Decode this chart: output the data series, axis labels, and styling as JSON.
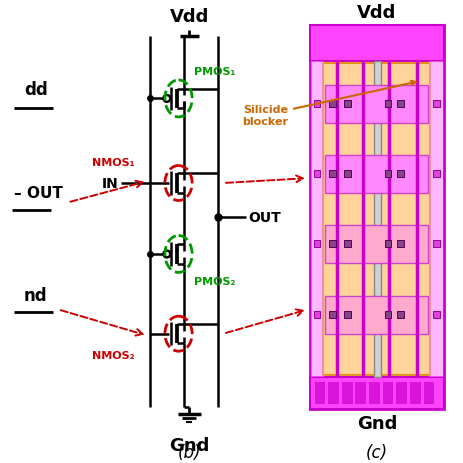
{
  "bg_color": "#ffffff",
  "title_b": "(b)",
  "title_c": "(c)",
  "vdd_b": "Vdd",
  "gnd_b": "Gnd",
  "vdd_c": "Vdd",
  "gnd_c": "Gnd",
  "in_label": "IN",
  "out_label": "OUT",
  "pmos1_label": "PMOS₁",
  "pmos2_label": "PMOS₂",
  "nmos1_label": "NMOS₁",
  "nmos2_label": "NMOS₂",
  "silicide_label": "Silicide\nblocker",
  "green": "#009900",
  "red": "#cc0000",
  "orange": "#cc6600",
  "black": "#000000"
}
